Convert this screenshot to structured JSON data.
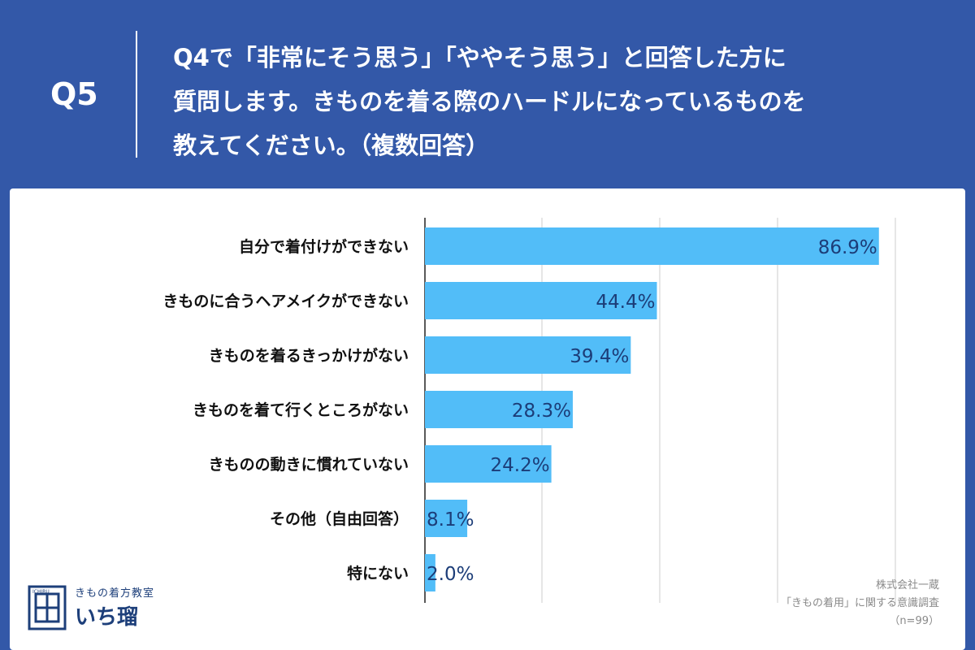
{
  "question": {
    "label": "Q5",
    "text": "Q4で「非常にそう思う」「ややそう思う」と回答した方に\n質問します。きものを着る際のハードルになっているものを\n教えてください。（複数回答）"
  },
  "colors": {
    "header_bg": "#3358a8",
    "bar": "#52bdf8",
    "value_text": "#1c3d78",
    "grid": "#cccccc"
  },
  "chart_data": {
    "type": "bar",
    "orientation": "horizontal",
    "categories": [
      "自分で着付けができない",
      "きものに合うヘアメイクができない",
      "きものを着るきっかけがない",
      "きものを着て行くところがない",
      "きものの動きに慣れていない",
      "その他（自由回答）",
      "特にない"
    ],
    "values": [
      86.9,
      44.4,
      39.4,
      28.3,
      24.2,
      8.1,
      2.0
    ],
    "value_labels": [
      "86.9%",
      "44.4%",
      "39.4%",
      "28.3%",
      "24.2%",
      "8.1%",
      "2.0%"
    ],
    "xlim": [
      0,
      90
    ],
    "grid": true
  },
  "logo": {
    "subtitle": "きもの着方教室",
    "name": "いち瑠",
    "side_text": "ICHIRU"
  },
  "source": {
    "company": "株式会社一蔵",
    "survey": "「きもの着用」に関する意識調査",
    "n": "（n=99）"
  }
}
